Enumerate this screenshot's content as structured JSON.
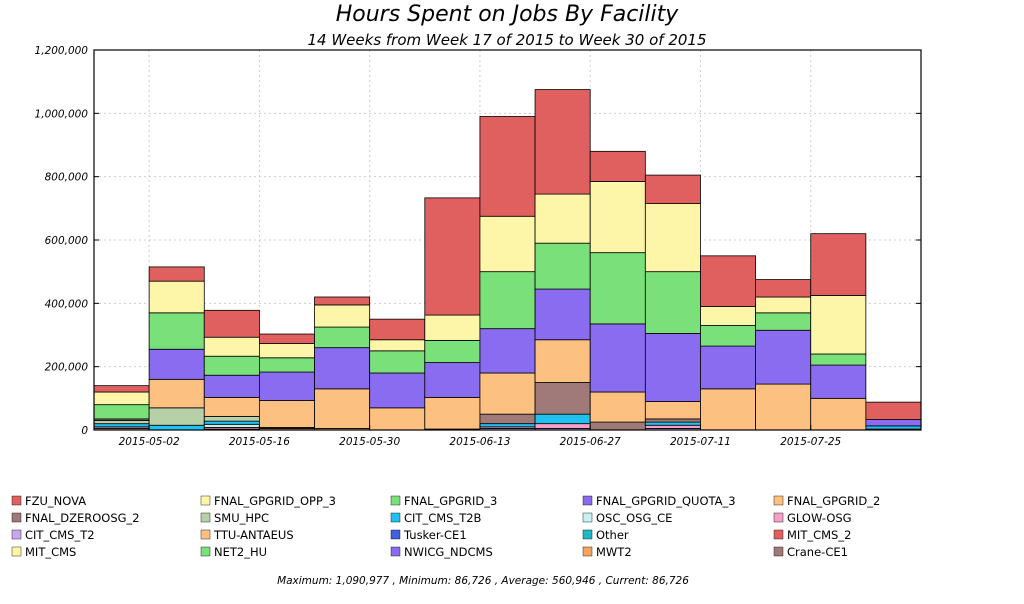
{
  "chart_data": {
    "type": "bar",
    "stacked": true,
    "title": "Hours Spent on Jobs By Facility",
    "subtitle": "14 Weeks from Week 17 of 2015 to Week 30 of 2015",
    "xlabel": "",
    "ylabel": "",
    "ylim": [
      0,
      1200000
    ],
    "y_ticks": [
      "0",
      "200,000",
      "400,000",
      "600,000",
      "800,000",
      "1,000,000",
      "1,200,000"
    ],
    "x_tick_labels": [
      "2015-05-02",
      "2015-05-16",
      "2015-05-30",
      "2015-06-13",
      "2015-06-27",
      "2015-07-11",
      "2015-07-25"
    ],
    "grid": true,
    "legend_position": "bottom",
    "footer": "Maximum: 1,090,977 , Minimum: 86,726 , Average: 560,946 , Current: 86,726",
    "periods": [
      "2015-04-25",
      "2015-05-02",
      "2015-05-09",
      "2015-05-16",
      "2015-05-23",
      "2015-05-30",
      "2015-06-06",
      "2015-06-13",
      "2015-06-20",
      "2015-06-27",
      "2015-07-04",
      "2015-07-11",
      "2015-07-18",
      "2015-07-25",
      "2015-08-01"
    ],
    "series": [
      {
        "name": "Crane-CE1",
        "color": "#a07a78",
        "values": [
          0,
          0,
          0,
          0,
          0,
          0,
          0,
          0,
          0,
          0,
          0,
          0,
          0,
          0,
          0
        ]
      },
      {
        "name": "MWT2",
        "color": "#f5a55a",
        "values": [
          5000,
          0,
          3000,
          5000,
          5000,
          0,
          3000,
          0,
          0,
          0,
          0,
          0,
          0,
          0,
          3000
        ]
      },
      {
        "name": "NWICG_NDCMS",
        "color": "#8a6cf0",
        "values": [
          0,
          0,
          0,
          0,
          0,
          0,
          0,
          0,
          0,
          0,
          0,
          0,
          0,
          0,
          0
        ]
      },
      {
        "name": "NET2_HU",
        "color": "#7ae07a",
        "values": [
          0,
          0,
          0,
          0,
          0,
          0,
          0,
          0,
          0,
          0,
          0,
          0,
          0,
          0,
          0
        ]
      },
      {
        "name": "MIT_CMS",
        "color": "#fdf5a8",
        "values": [
          0,
          0,
          0,
          0,
          0,
          0,
          0,
          0,
          0,
          0,
          0,
          0,
          0,
          0,
          0
        ]
      },
      {
        "name": "MIT_CMS_2",
        "color": "#e06060",
        "values": [
          0,
          0,
          0,
          0,
          0,
          0,
          0,
          0,
          0,
          0,
          0,
          0,
          0,
          0,
          0
        ]
      },
      {
        "name": "Other",
        "color": "#20b8c8",
        "values": [
          0,
          0,
          0,
          0,
          0,
          0,
          0,
          0,
          0,
          0,
          0,
          0,
          0,
          0,
          0
        ]
      },
      {
        "name": "Tusker-CE1",
        "color": "#4060e0",
        "values": [
          0,
          0,
          0,
          0,
          0,
          0,
          0,
          0,
          0,
          0,
          0,
          0,
          0,
          0,
          0
        ]
      },
      {
        "name": "TTU-ANTAEUS",
        "color": "#fcc080",
        "values": [
          0,
          0,
          0,
          0,
          0,
          0,
          0,
          0,
          0,
          0,
          0,
          0,
          0,
          0,
          0
        ]
      },
      {
        "name": "CIT_CMS_T2",
        "color": "#c8a8f0",
        "values": [
          5000,
          0,
          0,
          0,
          0,
          0,
          0,
          5000,
          5000,
          0,
          5000,
          0,
          0,
          0,
          0
        ]
      },
      {
        "name": "GLOW-OSG",
        "color": "#f4a0c8",
        "values": [
          0,
          0,
          5000,
          0,
          0,
          0,
          0,
          5000,
          15000,
          0,
          10000,
          0,
          0,
          0,
          0
        ]
      },
      {
        "name": "OSC_OSG_CE",
        "color": "#c8f0f0",
        "values": [
          0,
          0,
          10000,
          0,
          0,
          0,
          0,
          0,
          0,
          0,
          0,
          0,
          0,
          0,
          0
        ]
      },
      {
        "name": "CIT_CMS_T2B",
        "color": "#20c0f0",
        "values": [
          10000,
          15000,
          10000,
          3000,
          0,
          0,
          0,
          10000,
          30000,
          0,
          10000,
          0,
          0,
          0,
          10000
        ]
      },
      {
        "name": "SMU_HPC",
        "color": "#b8d0a8",
        "values": [
          10000,
          55000,
          15000,
          0,
          0,
          0,
          0,
          0,
          0,
          0,
          0,
          0,
          0,
          0,
          0
        ]
      },
      {
        "name": "FNAL_DZEROOSG_2",
        "color": "#a07a78",
        "values": [
          5000,
          0,
          0,
          0,
          0,
          0,
          0,
          30000,
          100000,
          25000,
          10000,
          0,
          0,
          0,
          0
        ]
      },
      {
        "name": "FNAL_GPGRID_2",
        "color": "#fcc080",
        "values": [
          0,
          90000,
          60000,
          85000,
          125000,
          70000,
          100000,
          130000,
          135000,
          95000,
          55000,
          130000,
          145000,
          100000,
          0
        ]
      },
      {
        "name": "FNAL_GPGRID_QUOTA_3",
        "color": "#8a6cf0",
        "values": [
          0,
          95000,
          70000,
          90000,
          130000,
          110000,
          110000,
          140000,
          160000,
          215000,
          215000,
          135000,
          170000,
          105000,
          20000
        ]
      },
      {
        "name": "FNAL_GPGRID_3",
        "color": "#7ae07a",
        "values": [
          45000,
          115000,
          60000,
          45000,
          65000,
          70000,
          70000,
          180000,
          145000,
          225000,
          195000,
          65000,
          55000,
          35000,
          0
        ]
      },
      {
        "name": "FNAL_GPGRID_OPP_3",
        "color": "#fdf5a8",
        "values": [
          40000,
          100000,
          60000,
          45000,
          70000,
          35000,
          80000,
          175000,
          155000,
          225000,
          215000,
          60000,
          50000,
          185000,
          0
        ]
      },
      {
        "name": "FZU_NOVA",
        "color": "#e06060",
        "values": [
          20000,
          45000,
          85000,
          30000,
          25000,
          65000,
          370000,
          315000,
          330000,
          95000,
          90000,
          160000,
          55000,
          195000,
          55000
        ]
      }
    ]
  }
}
